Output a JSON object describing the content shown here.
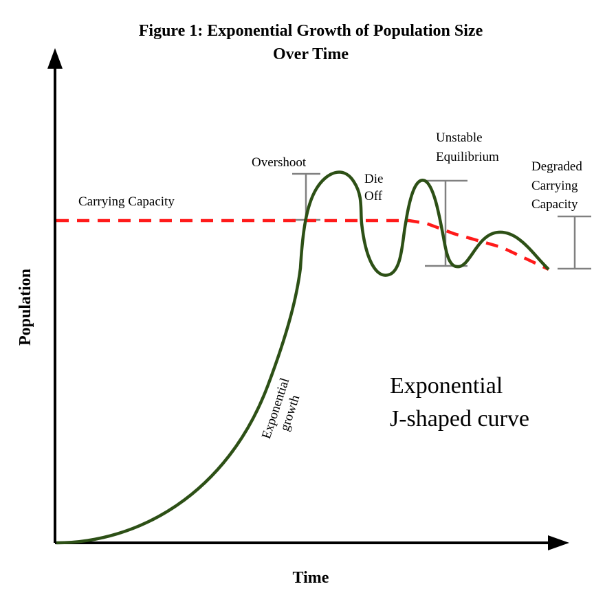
{
  "title_line1": "Figure 1: Exponential Growth of Population Size",
  "title_line2": "Over Time",
  "axes": {
    "x_label": "Time",
    "y_label": "Population"
  },
  "labels": {
    "carrying_capacity": "Carrying Capacity",
    "overshoot": "Overshoot",
    "die_off_1": "Die",
    "die_off_2": "Off",
    "unstable_1": "Unstable",
    "unstable_2": "Equilibrium",
    "degraded_1": "Degraded",
    "degraded_2": "Carrying",
    "degraded_3": "Capacity",
    "growth_1": "Exponential",
    "growth_2": "growth",
    "curve_1": "Exponential",
    "curve_2": "J-shaped curve"
  },
  "colors": {
    "curve": "#2d5016",
    "capacity": "#ff1a1a",
    "bars": "#808080"
  }
}
